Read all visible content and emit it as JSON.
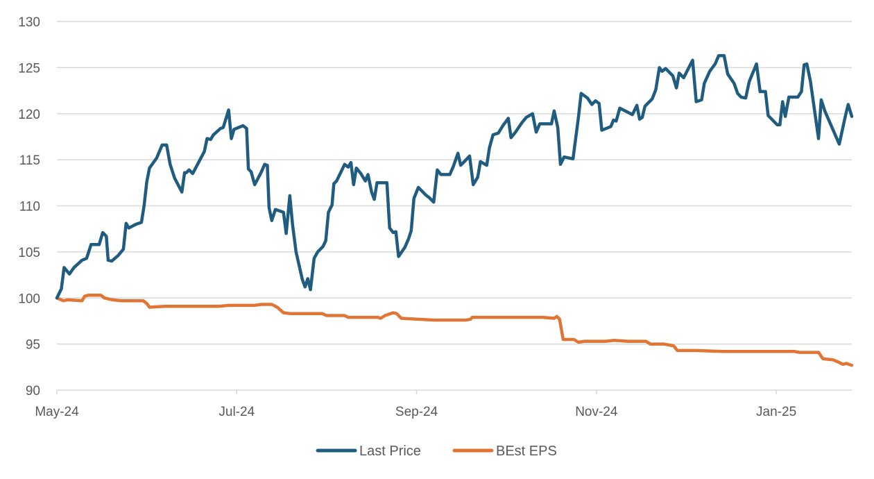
{
  "chart_data": {
    "type": "line",
    "title": "",
    "xlabel": "",
    "ylabel": "",
    "x_unit": "months since May-24",
    "x_range": [
      0,
      8.84
    ],
    "ylim": [
      90,
      130
    ],
    "y_ticks": [
      90,
      95,
      100,
      105,
      110,
      115,
      120,
      125,
      130
    ],
    "y_tick_labels": [
      "90",
      "95",
      "100",
      "105",
      "110",
      "115",
      "120",
      "125",
      "130"
    ],
    "x_ticks": [
      0,
      2,
      4,
      6,
      8
    ],
    "x_tick_labels": [
      "May-24",
      "Jul-24",
      "Sep-24",
      "Nov-24",
      "Jan-25"
    ],
    "grid": "horizontal",
    "legend_position": "bottom-center",
    "series": [
      {
        "name": "Last Price",
        "color": "#1f5c7f",
        "points": [
          [
            0.0,
            100.0
          ],
          [
            0.05,
            101.0
          ],
          [
            0.08,
            103.3
          ],
          [
            0.14,
            102.6
          ],
          [
            0.19,
            103.3
          ],
          [
            0.28,
            104.1
          ],
          [
            0.33,
            104.3
          ],
          [
            0.38,
            105.8
          ],
          [
            0.47,
            105.8
          ],
          [
            0.51,
            107.1
          ],
          [
            0.55,
            106.7
          ],
          [
            0.57,
            104.1
          ],
          [
            0.61,
            104.0
          ],
          [
            0.68,
            104.6
          ],
          [
            0.74,
            105.3
          ],
          [
            0.77,
            108.1
          ],
          [
            0.8,
            107.6
          ],
          [
            0.88,
            108.0
          ],
          [
            0.94,
            108.2
          ],
          [
            0.97,
            110.0
          ],
          [
            1.0,
            112.6
          ],
          [
            1.03,
            114.1
          ],
          [
            1.11,
            115.2
          ],
          [
            1.17,
            116.6
          ],
          [
            1.22,
            116.6
          ],
          [
            1.26,
            114.5
          ],
          [
            1.31,
            113.0
          ],
          [
            1.39,
            111.5
          ],
          [
            1.42,
            113.6
          ],
          [
            1.47,
            113.9
          ],
          [
            1.51,
            113.5
          ],
          [
            1.44,
            113.6
          ],
          [
            1.57,
            114.6
          ],
          [
            1.64,
            115.9
          ],
          [
            1.67,
            117.3
          ],
          [
            1.71,
            117.2
          ],
          [
            1.74,
            117.7
          ],
          [
            1.82,
            118.4
          ],
          [
            1.85,
            118.5
          ],
          [
            1.91,
            120.4
          ],
          [
            1.94,
            117.3
          ],
          [
            1.97,
            118.3
          ],
          [
            2.07,
            118.7
          ],
          [
            2.11,
            118.4
          ],
          [
            2.13,
            114.0
          ],
          [
            2.16,
            113.7
          ],
          [
            2.2,
            112.3
          ],
          [
            2.27,
            113.6
          ],
          [
            2.31,
            114.5
          ],
          [
            2.34,
            114.4
          ],
          [
            2.36,
            109.8
          ],
          [
            2.39,
            108.4
          ],
          [
            2.43,
            109.6
          ],
          [
            2.52,
            109.3
          ],
          [
            2.55,
            107.0
          ],
          [
            2.59,
            111.1
          ],
          [
            2.62,
            108.0
          ],
          [
            2.66,
            105.0
          ],
          [
            2.73,
            102.0
          ],
          [
            2.76,
            101.2
          ],
          [
            2.79,
            102.1
          ],
          [
            2.82,
            100.9
          ],
          [
            2.86,
            104.3
          ],
          [
            2.9,
            105.0
          ],
          [
            2.96,
            105.6
          ],
          [
            2.99,
            106.2
          ],
          [
            3.02,
            109.3
          ],
          [
            3.06,
            110.1
          ],
          [
            3.08,
            112.4
          ],
          [
            3.11,
            112.7
          ],
          [
            3.16,
            113.7
          ],
          [
            3.2,
            114.5
          ],
          [
            3.24,
            114.2
          ],
          [
            3.27,
            114.7
          ],
          [
            3.3,
            112.3
          ],
          [
            3.33,
            114.1
          ],
          [
            3.38,
            113.5
          ],
          [
            3.43,
            112.7
          ],
          [
            3.46,
            113.4
          ],
          [
            3.5,
            111.5
          ],
          [
            3.53,
            110.7
          ],
          [
            3.56,
            112.5
          ],
          [
            3.67,
            112.5
          ],
          [
            3.7,
            107.6
          ],
          [
            3.74,
            107.1
          ],
          [
            3.77,
            107.2
          ],
          [
            3.8,
            104.5
          ],
          [
            3.87,
            105.5
          ],
          [
            3.91,
            106.4
          ],
          [
            3.94,
            107.3
          ],
          [
            3.97,
            110.8
          ],
          [
            4.02,
            112.0
          ],
          [
            4.1,
            111.2
          ],
          [
            4.14,
            110.9
          ],
          [
            4.19,
            110.4
          ],
          [
            4.23,
            113.9
          ],
          [
            4.27,
            113.4
          ],
          [
            4.37,
            113.4
          ],
          [
            4.41,
            114.3
          ],
          [
            4.46,
            115.7
          ],
          [
            4.49,
            114.4
          ],
          [
            4.54,
            114.9
          ],
          [
            4.59,
            115.4
          ],
          [
            4.63,
            112.3
          ],
          [
            4.68,
            113.1
          ],
          [
            4.71,
            114.8
          ],
          [
            4.78,
            114.4
          ],
          [
            4.81,
            116.3
          ],
          [
            4.85,
            117.7
          ],
          [
            4.91,
            117.9
          ],
          [
            4.96,
            118.7
          ],
          [
            5.02,
            119.5
          ],
          [
            5.05,
            117.4
          ],
          [
            5.1,
            118.0
          ],
          [
            5.17,
            119.0
          ],
          [
            5.22,
            119.6
          ],
          [
            5.29,
            120.0
          ],
          [
            5.33,
            118.0
          ],
          [
            5.37,
            118.9
          ],
          [
            5.5,
            118.9
          ],
          [
            5.53,
            120.3
          ],
          [
            5.57,
            118.5
          ],
          [
            5.6,
            114.5
          ],
          [
            5.64,
            115.3
          ],
          [
            5.74,
            115.1
          ],
          [
            5.8,
            119.6
          ],
          [
            5.83,
            122.2
          ],
          [
            5.9,
            121.7
          ],
          [
            5.95,
            121.0
          ],
          [
            5.99,
            121.4
          ],
          [
            6.03,
            121.1
          ],
          [
            6.06,
            118.2
          ],
          [
            6.16,
            118.6
          ],
          [
            6.19,
            119.3
          ],
          [
            6.22,
            119.2
          ],
          [
            6.26,
            120.6
          ],
          [
            6.4,
            119.9
          ],
          [
            6.45,
            120.9
          ],
          [
            6.48,
            119.4
          ],
          [
            6.51,
            119.6
          ],
          [
            6.54,
            120.8
          ],
          [
            6.62,
            121.6
          ],
          [
            6.66,
            122.6
          ],
          [
            6.7,
            125.0
          ],
          [
            6.73,
            124.6
          ],
          [
            6.77,
            124.9
          ],
          [
            6.85,
            124.1
          ],
          [
            6.89,
            122.8
          ],
          [
            6.92,
            124.4
          ],
          [
            6.97,
            123.9
          ],
          [
            7.07,
            125.8
          ],
          [
            7.11,
            121.3
          ],
          [
            7.17,
            121.5
          ],
          [
            7.2,
            123.3
          ],
          [
            7.26,
            124.6
          ],
          [
            7.32,
            125.4
          ],
          [
            7.36,
            126.3
          ],
          [
            7.42,
            126.3
          ],
          [
            7.46,
            124.3
          ],
          [
            7.53,
            123.3
          ],
          [
            7.57,
            122.2
          ],
          [
            7.61,
            121.8
          ],
          [
            7.66,
            121.7
          ],
          [
            7.7,
            123.5
          ],
          [
            7.78,
            125.4
          ],
          [
            7.82,
            122.4
          ],
          [
            7.88,
            122.4
          ],
          [
            7.91,
            119.8
          ],
          [
            8.01,
            118.8
          ],
          [
            8.04,
            118.8
          ],
          [
            8.07,
            121.3
          ],
          [
            8.1,
            119.7
          ],
          [
            8.14,
            121.8
          ],
          [
            8.24,
            121.8
          ],
          [
            8.28,
            122.4
          ],
          [
            8.31,
            125.3
          ],
          [
            8.34,
            125.4
          ],
          [
            8.38,
            123.5
          ],
          [
            8.47,
            117.3
          ],
          [
            8.5,
            121.5
          ],
          [
            8.54,
            120.3
          ],
          [
            8.7,
            116.7
          ],
          [
            8.77,
            119.8
          ],
          [
            8.8,
            121.0
          ],
          [
            8.84,
            119.7
          ]
        ]
      },
      {
        "name": "BEst EPS",
        "color": "#e07535",
        "points": [
          [
            0.0,
            100.0
          ],
          [
            0.05,
            99.8
          ],
          [
            0.07,
            99.7
          ],
          [
            0.12,
            99.8
          ],
          [
            0.28,
            99.7
          ],
          [
            0.31,
            100.2
          ],
          [
            0.35,
            100.3
          ],
          [
            0.49,
            100.3
          ],
          [
            0.53,
            100.0
          ],
          [
            0.62,
            99.8
          ],
          [
            0.72,
            99.7
          ],
          [
            0.96,
            99.7
          ],
          [
            1.0,
            99.4
          ],
          [
            1.03,
            99.0
          ],
          [
            1.2,
            99.1
          ],
          [
            1.4,
            99.1
          ],
          [
            1.8,
            99.1
          ],
          [
            1.91,
            99.2
          ],
          [
            2.05,
            99.2
          ],
          [
            2.2,
            99.2
          ],
          [
            2.27,
            99.3
          ],
          [
            2.39,
            99.3
          ],
          [
            2.45,
            99.0
          ],
          [
            2.52,
            98.4
          ],
          [
            2.6,
            98.3
          ],
          [
            2.95,
            98.3
          ],
          [
            3.0,
            98.1
          ],
          [
            3.2,
            98.1
          ],
          [
            3.24,
            97.9
          ],
          [
            3.57,
            97.9
          ],
          [
            3.6,
            97.8
          ],
          [
            3.65,
            98.1
          ],
          [
            3.74,
            98.4
          ],
          [
            3.78,
            98.3
          ],
          [
            3.83,
            97.8
          ],
          [
            4.0,
            97.7
          ],
          [
            4.2,
            97.6
          ],
          [
            4.55,
            97.6
          ],
          [
            4.6,
            97.7
          ],
          [
            4.62,
            97.9
          ],
          [
            5.0,
            97.9
          ],
          [
            5.4,
            97.9
          ],
          [
            5.53,
            97.8
          ],
          [
            5.56,
            98.0
          ],
          [
            5.59,
            97.7
          ],
          [
            5.63,
            95.5
          ],
          [
            5.75,
            95.5
          ],
          [
            5.8,
            95.2
          ],
          [
            5.87,
            95.3
          ],
          [
            6.1,
            95.3
          ],
          [
            6.2,
            95.4
          ],
          [
            6.35,
            95.3
          ],
          [
            6.55,
            95.3
          ],
          [
            6.6,
            95.0
          ],
          [
            6.75,
            95.0
          ],
          [
            6.86,
            94.8
          ],
          [
            6.9,
            94.3
          ],
          [
            7.1,
            94.3
          ],
          [
            7.4,
            94.2
          ],
          [
            7.8,
            94.2
          ],
          [
            8.2,
            94.2
          ],
          [
            8.26,
            94.1
          ],
          [
            8.47,
            94.1
          ],
          [
            8.52,
            93.4
          ],
          [
            8.63,
            93.3
          ],
          [
            8.7,
            93.0
          ],
          [
            8.74,
            92.8
          ],
          [
            8.78,
            92.9
          ],
          [
            8.84,
            92.7
          ]
        ]
      }
    ]
  },
  "legend": {
    "items": [
      {
        "label": "Last Price",
        "color": "#1f5c7f"
      },
      {
        "label": "BEst EPS",
        "color": "#e07535"
      }
    ]
  }
}
